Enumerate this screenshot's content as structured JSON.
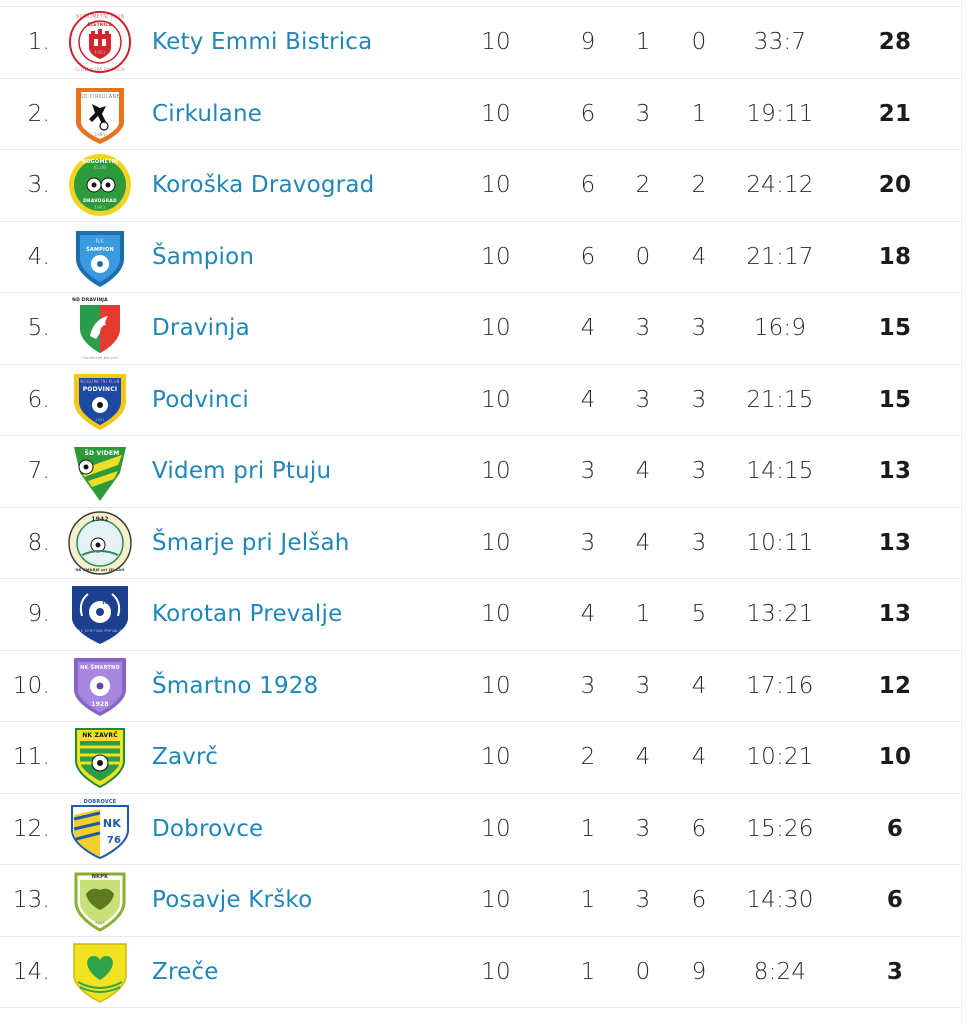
{
  "standings": [
    {
      "pos": "1.",
      "team": "Kety Emmi Bistrica",
      "crest": "crest-icon-bistrica",
      "played": "10",
      "won": "9",
      "drawn": "1",
      "lost": "0",
      "goals": "33:7",
      "points": "28",
      "crest_text": [
        "NOGOMETNI KLUB",
        "BISTRICA",
        "SLOVENSKA BISTRICA",
        "1951"
      ]
    },
    {
      "pos": "2.",
      "team": "Cirkulane",
      "crest": "crest-icon-cirkulane",
      "played": "10",
      "won": "6",
      "drawn": "3",
      "lost": "1",
      "goals": "19:11",
      "points": "21",
      "crest_text": [
        "ŠD CIRKULANE",
        "1981"
      ]
    },
    {
      "pos": "3.",
      "team": "Koroška Dravograd",
      "crest": "crest-icon-dravograd",
      "played": "10",
      "won": "6",
      "drawn": "2",
      "lost": "2",
      "goals": "24:12",
      "points": "20",
      "crest_text": [
        "NOGOMETNI",
        "KLUB",
        "DRAVOGRAD",
        "1961"
      ]
    },
    {
      "pos": "4.",
      "team": "Šampion",
      "crest": "crest-icon-sampion",
      "played": "10",
      "won": "6",
      "drawn": "0",
      "lost": "4",
      "goals": "21:17",
      "points": "18",
      "crest_text": [
        "NK",
        "ŠAMPION"
      ]
    },
    {
      "pos": "5.",
      "team": "Dravinja",
      "crest": "crest-icon-dravinja",
      "played": "10",
      "won": "4",
      "drawn": "3",
      "lost": "3",
      "goals": "16:9",
      "points": "15",
      "crest_text": [
        "ND DRAVINJA",
        "Slovenske Konjice"
      ]
    },
    {
      "pos": "6.",
      "team": "Podvinci",
      "crest": "crest-icon-podvinci",
      "played": "10",
      "won": "4",
      "drawn": "3",
      "lost": "3",
      "goals": "21:15",
      "points": "15",
      "crest_text": [
        "NOGOMETNI KLUB",
        "PODVINCI",
        "1951"
      ]
    },
    {
      "pos": "7.",
      "team": "Videm pri Ptuju",
      "crest": "crest-icon-videm",
      "played": "10",
      "won": "3",
      "drawn": "4",
      "lost": "3",
      "goals": "14:15",
      "points": "13",
      "crest_text": [
        "ŠD VIDEM"
      ]
    },
    {
      "pos": "8.",
      "team": "Šmarje pri Jelšah",
      "crest": "crest-icon-smarje",
      "played": "10",
      "won": "3",
      "drawn": "4",
      "lost": "3",
      "goals": "10:11",
      "points": "13",
      "crest_text": [
        "1942",
        "NK ŠMARJE pri JELŠAH"
      ]
    },
    {
      "pos": "9.",
      "team": "Korotan Prevalje",
      "crest": "crest-icon-korotan",
      "played": "10",
      "won": "4",
      "drawn": "1",
      "lost": "5",
      "goals": "13:21",
      "points": "13",
      "crest_text": [
        "1976",
        "NK KOROTAN PREVALJE"
      ]
    },
    {
      "pos": "10.",
      "team": "Šmartno 1928",
      "crest": "crest-icon-smartno",
      "played": "10",
      "won": "3",
      "drawn": "3",
      "lost": "4",
      "goals": "17:16",
      "points": "12",
      "crest_text": [
        "NK ŠMARTNO",
        "1928"
      ]
    },
    {
      "pos": "11.",
      "team": "Zavrč",
      "crest": "crest-icon-zavrc",
      "played": "10",
      "won": "2",
      "drawn": "4",
      "lost": "4",
      "goals": "10:21",
      "points": "10",
      "crest_text": [
        "NK ZAVRČ"
      ]
    },
    {
      "pos": "12.",
      "team": "Dobrovce",
      "crest": "crest-icon-dobrovce",
      "played": "10",
      "won": "1",
      "drawn": "3",
      "lost": "6",
      "goals": "15:26",
      "points": "6",
      "crest_text": [
        "DOBROVCE",
        "NK",
        "76"
      ]
    },
    {
      "pos": "13.",
      "team": "Posavje Krško",
      "crest": "crest-icon-krsko",
      "played": "10",
      "won": "1",
      "drawn": "3",
      "lost": "6",
      "goals": "14:30",
      "points": "6",
      "crest_text": [
        "NKPK",
        "2013"
      ]
    },
    {
      "pos": "14.",
      "team": "Zreče",
      "crest": "crest-icon-zrece",
      "played": "10",
      "won": "1",
      "drawn": "0",
      "lost": "9",
      "goals": "8:24",
      "points": "3",
      "crest_text": []
    }
  ],
  "colors": {
    "team_link": "#1f86ba",
    "row_divider": "#e4eaef",
    "text": "#2b2b2b"
  }
}
